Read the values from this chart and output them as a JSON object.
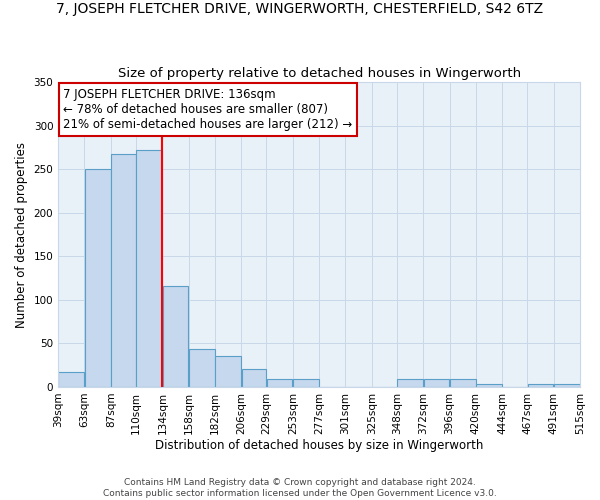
{
  "title": "7, JOSEPH FLETCHER DRIVE, WINGERWORTH, CHESTERFIELD, S42 6TZ",
  "subtitle": "Size of property relative to detached houses in Wingerworth",
  "xlabel": "Distribution of detached houses by size in Wingerworth",
  "ylabel": "Number of detached properties",
  "footer_line1": "Contains HM Land Registry data © Crown copyright and database right 2024.",
  "footer_line2": "Contains public sector information licensed under the Open Government Licence v3.0.",
  "bar_left_edges": [
    39,
    63,
    87,
    110,
    134,
    158,
    182,
    206,
    229,
    253,
    277,
    301,
    325,
    348,
    372,
    396,
    420,
    444,
    467,
    491
  ],
  "bar_widths": [
    24,
    24,
    23,
    24,
    24,
    24,
    24,
    23,
    24,
    24,
    24,
    24,
    23,
    24,
    24,
    24,
    24,
    23,
    24,
    24
  ],
  "bar_heights": [
    17,
    250,
    267,
    272,
    116,
    44,
    35,
    21,
    9,
    9,
    0,
    0,
    0,
    9,
    9,
    9,
    3,
    0,
    3,
    3
  ],
  "bar_color": "#c5d8ed",
  "bar_edge_color": "#5a9fc8",
  "xlim": [
    39,
    515
  ],
  "ylim": [
    0,
    350
  ],
  "yticks": [
    0,
    50,
    100,
    150,
    200,
    250,
    300,
    350
  ],
  "xtick_labels": [
    "39sqm",
    "63sqm",
    "87sqm",
    "110sqm",
    "134sqm",
    "158sqm",
    "182sqm",
    "206sqm",
    "229sqm",
    "253sqm",
    "277sqm",
    "301sqm",
    "325sqm",
    "348sqm",
    "372sqm",
    "396sqm",
    "420sqm",
    "444sqm",
    "467sqm",
    "491sqm",
    "515sqm"
  ],
  "xtick_positions": [
    39,
    63,
    87,
    110,
    134,
    158,
    182,
    206,
    229,
    253,
    277,
    301,
    325,
    348,
    372,
    396,
    420,
    444,
    467,
    491,
    515
  ],
  "red_line_x": 134,
  "annotation_line1": "7 JOSEPH FLETCHER DRIVE: 136sqm",
  "annotation_line2": "← 78% of detached houses are smaller (807)",
  "annotation_line3": "21% of semi-detached houses are larger (212) →",
  "annotation_box_color": "#ffffff",
  "annotation_border_color": "#cc0000",
  "grid_color": "#c8d8e8",
  "bg_color": "#e8f0f8",
  "title_fontsize": 10,
  "subtitle_fontsize": 9.5,
  "axis_label_fontsize": 8.5,
  "tick_fontsize": 7.5,
  "annotation_fontsize": 8.5,
  "footer_fontsize": 6.5
}
